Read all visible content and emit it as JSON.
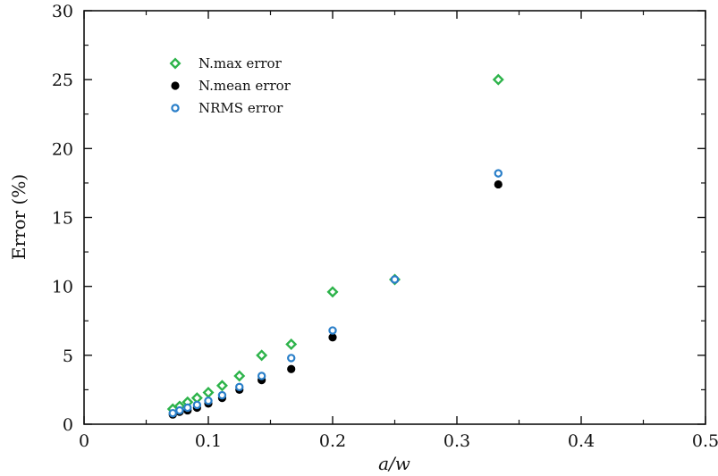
{
  "chart_data": {
    "type": "scatter",
    "xlabel": "a/w",
    "ylabel": "Error (%)",
    "xlim": [
      0,
      0.5
    ],
    "ylim": [
      0,
      30
    ],
    "x_ticks": [
      "0",
      "0.1",
      "0.2",
      "0.3",
      "0.4",
      "0.5"
    ],
    "y_ticks": [
      "0",
      "5",
      "10",
      "15",
      "20",
      "25",
      "30"
    ],
    "legend_position": "top-left",
    "grid": false,
    "series": [
      {
        "name": "N.max error",
        "marker": "diamond",
        "color": "#2db34a",
        "x": [
          0.0714,
          0.0769,
          0.0833,
          0.0909,
          0.1,
          0.1111,
          0.125,
          0.1429,
          0.1667,
          0.2,
          0.25,
          0.3333
        ],
        "y": [
          1.1,
          1.3,
          1.6,
          1.9,
          2.3,
          2.8,
          3.5,
          5.0,
          5.8,
          9.6,
          10.5,
          25.0
        ]
      },
      {
        "name": "N.mean error",
        "marker": "circle",
        "color": "#000000",
        "x": [
          0.0714,
          0.0769,
          0.0833,
          0.0909,
          0.1,
          0.1111,
          0.125,
          0.1429,
          0.1667,
          0.2,
          0.25,
          0.3333
        ],
        "y": [
          0.7,
          0.9,
          1.0,
          1.2,
          1.5,
          1.9,
          2.5,
          3.2,
          4.0,
          6.3,
          10.5,
          17.4
        ]
      },
      {
        "name": "NRMS error",
        "marker": "ring",
        "color": "#2a7fc9",
        "x": [
          0.0714,
          0.0769,
          0.0833,
          0.0909,
          0.1,
          0.1111,
          0.125,
          0.1429,
          0.1667,
          0.2,
          0.25,
          0.3333
        ],
        "y": [
          0.8,
          1.0,
          1.2,
          1.4,
          1.7,
          2.1,
          2.7,
          3.5,
          4.8,
          6.8,
          10.5,
          18.2
        ]
      }
    ]
  }
}
